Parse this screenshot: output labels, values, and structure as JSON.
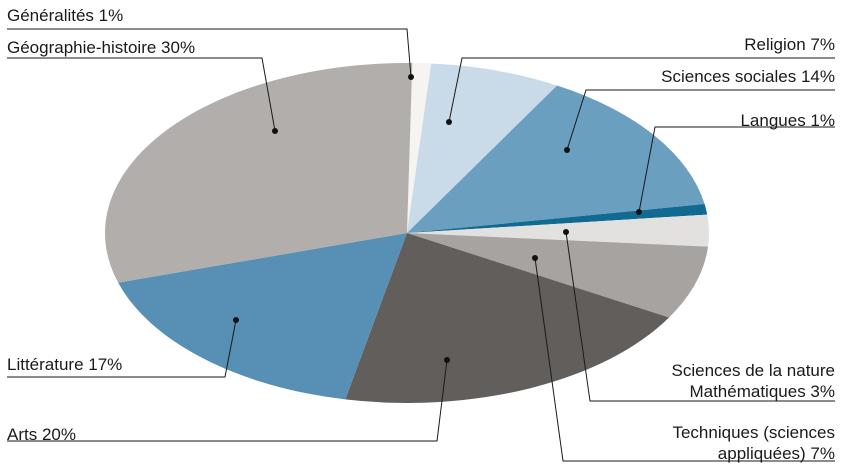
{
  "chart_data": {
    "type": "pie",
    "slices": [
      {
        "label": "Généralités 1%",
        "value": 1,
        "color": "#f5f4f1"
      },
      {
        "label": "Religion 7%",
        "value": 7,
        "color": "#c9dbe9"
      },
      {
        "label": "Sciences sociales 14%",
        "value": 14,
        "color": "#6b9fc0"
      },
      {
        "label": "Langues 1%",
        "value": 1,
        "color": "#116a92"
      },
      {
        "label": "Sciences de la nature Mathématiques 3%",
        "label_lines": [
          "Sciences de la nature",
          "Mathématiques 3%"
        ],
        "value": 3,
        "color": "#e2e1df"
      },
      {
        "label": "Techniques (sciences appliquées) 7%",
        "label_lines": [
          "Techniques (sciences",
          "appliquées) 7%"
        ],
        "value": 7,
        "color": "#a6a3a0"
      },
      {
        "label": "Arts 20%",
        "value": 20,
        "color": "#625e5b"
      },
      {
        "label": "Littérature 17%",
        "value": 17,
        "color": "#5790b4"
      },
      {
        "label": "Géographie-histoire 30%",
        "value": 30,
        "color": "#b2aeac"
      }
    ]
  }
}
